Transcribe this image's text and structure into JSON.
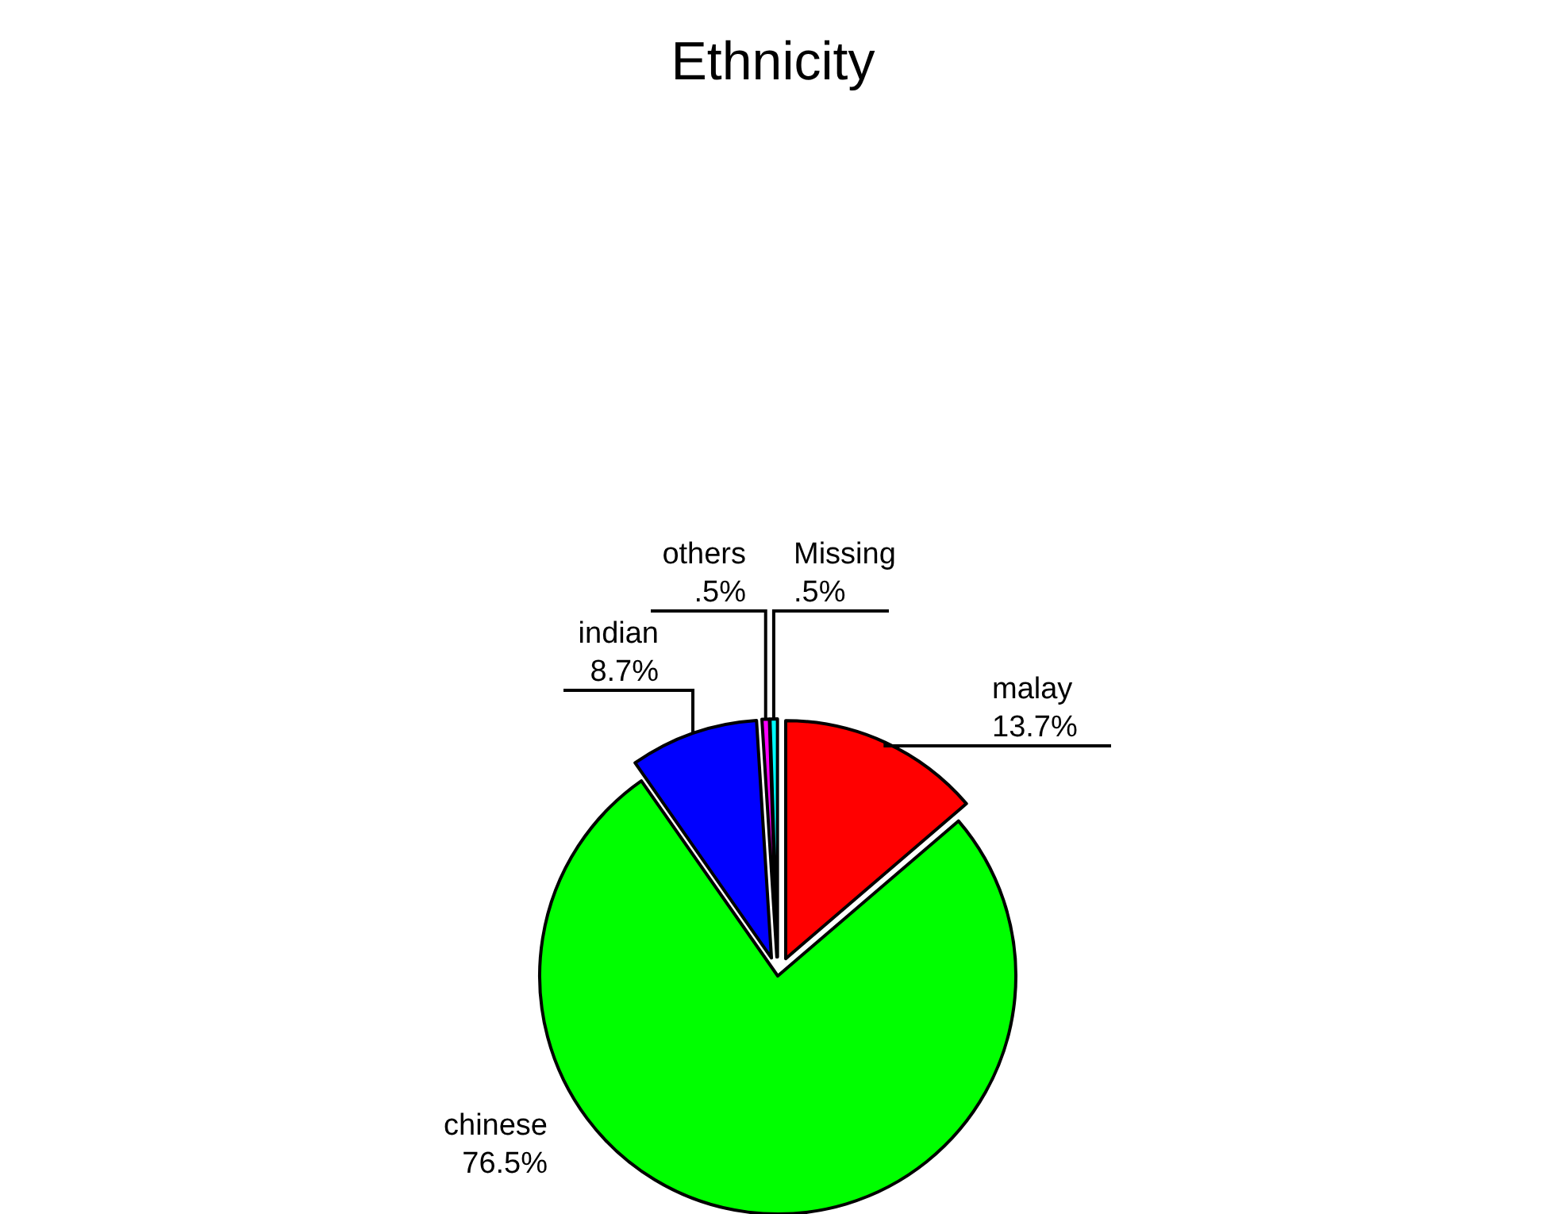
{
  "chart_data": {
    "type": "pie",
    "title": "Ethnicity",
    "categories": [
      "malay",
      "chinese",
      "indian",
      "others",
      "Missing"
    ],
    "values": [
      13.7,
      76.5,
      8.7,
      0.5,
      0.5
    ],
    "value_labels": [
      "13.7%",
      "76.5%",
      "8.7%",
      ".5%",
      ".5%"
    ],
    "colors": [
      "#ff0000",
      "#00ff00",
      "#0000ff",
      "#ff00ff",
      "#00ffff"
    ]
  }
}
